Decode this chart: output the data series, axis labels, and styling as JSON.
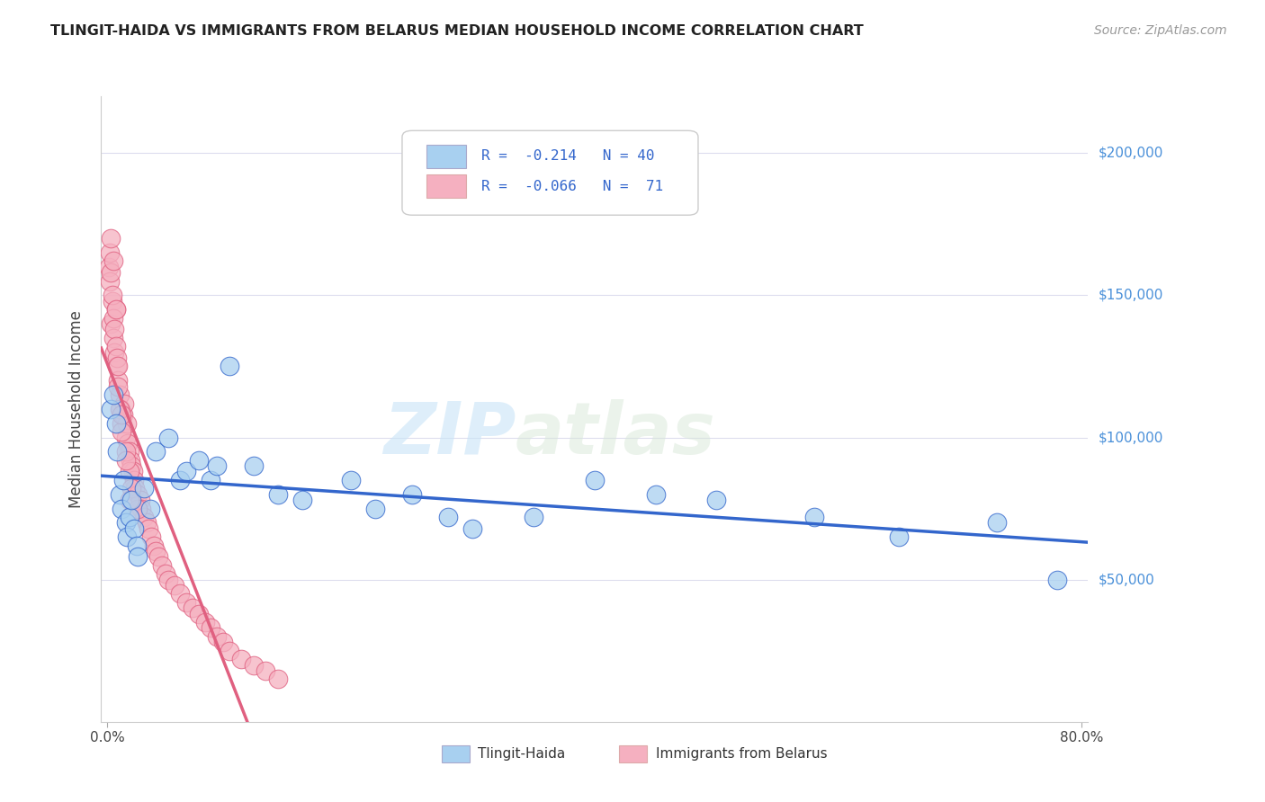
{
  "title": "TLINGIT-HAIDA VS IMMIGRANTS FROM BELARUS MEDIAN HOUSEHOLD INCOME CORRELATION CHART",
  "source": "Source: ZipAtlas.com",
  "ylabel": "Median Household Income",
  "y_ticks": [
    50000,
    100000,
    150000,
    200000
  ],
  "y_tick_labels": [
    "$50,000",
    "$100,000",
    "$150,000",
    "$200,000"
  ],
  "xlim": [
    0.0,
    0.8
  ],
  "ylim": [
    0,
    220000
  ],
  "color_blue": "#A8D0F0",
  "color_pink": "#F5B0C0",
  "line_blue": "#3366CC",
  "line_pink": "#E06080",
  "line_dashed_color": "#CCCCDD",
  "watermark_zip": "ZIP",
  "watermark_atlas": "atlas",
  "tlingit_x": [
    0.003,
    0.005,
    0.007,
    0.008,
    0.01,
    0.012,
    0.013,
    0.015,
    0.016,
    0.018,
    0.02,
    0.022,
    0.024,
    0.025,
    0.03,
    0.035,
    0.04,
    0.05,
    0.06,
    0.065,
    0.075,
    0.085,
    0.09,
    0.1,
    0.12,
    0.14,
    0.16,
    0.2,
    0.22,
    0.25,
    0.28,
    0.3,
    0.35,
    0.4,
    0.45,
    0.5,
    0.58,
    0.65,
    0.73,
    0.78
  ],
  "tlingit_y": [
    110000,
    115000,
    105000,
    95000,
    80000,
    75000,
    85000,
    70000,
    65000,
    72000,
    78000,
    68000,
    62000,
    58000,
    82000,
    75000,
    95000,
    100000,
    85000,
    88000,
    92000,
    85000,
    90000,
    125000,
    90000,
    80000,
    78000,
    85000,
    75000,
    80000,
    72000,
    68000,
    72000,
    85000,
    80000,
    78000,
    72000,
    65000,
    70000,
    50000
  ],
  "belarus_x": [
    0.001,
    0.002,
    0.003,
    0.004,
    0.005,
    0.006,
    0.007,
    0.008,
    0.009,
    0.01,
    0.011,
    0.012,
    0.013,
    0.014,
    0.015,
    0.016,
    0.017,
    0.018,
    0.019,
    0.02,
    0.021,
    0.022,
    0.023,
    0.025,
    0.027,
    0.028,
    0.03,
    0.032,
    0.034,
    0.036,
    0.038,
    0.04,
    0.042,
    0.045,
    0.048,
    0.05,
    0.055,
    0.06,
    0.065,
    0.07,
    0.075,
    0.08,
    0.085,
    0.09,
    0.095,
    0.1,
    0.11,
    0.12,
    0.13,
    0.14,
    0.002,
    0.003,
    0.004,
    0.005,
    0.006,
    0.007,
    0.008,
    0.009,
    0.01,
    0.012,
    0.015,
    0.018,
    0.02,
    0.025,
    0.003,
    0.005,
    0.007,
    0.009,
    0.012,
    0.015,
    0.018
  ],
  "belarus_y": [
    160000,
    155000,
    140000,
    148000,
    135000,
    130000,
    145000,
    125000,
    120000,
    115000,
    110000,
    105000,
    108000,
    112000,
    100000,
    105000,
    98000,
    95000,
    92000,
    90000,
    88000,
    85000,
    82000,
    80000,
    78000,
    75000,
    72000,
    70000,
    68000,
    65000,
    62000,
    60000,
    58000,
    55000,
    52000,
    50000,
    48000,
    45000,
    42000,
    40000,
    38000,
    35000,
    33000,
    30000,
    28000,
    25000,
    22000,
    20000,
    18000,
    15000,
    165000,
    158000,
    150000,
    142000,
    138000,
    132000,
    128000,
    118000,
    110000,
    102000,
    95000,
    88000,
    82000,
    75000,
    170000,
    162000,
    145000,
    125000,
    108000,
    92000,
    78000
  ]
}
